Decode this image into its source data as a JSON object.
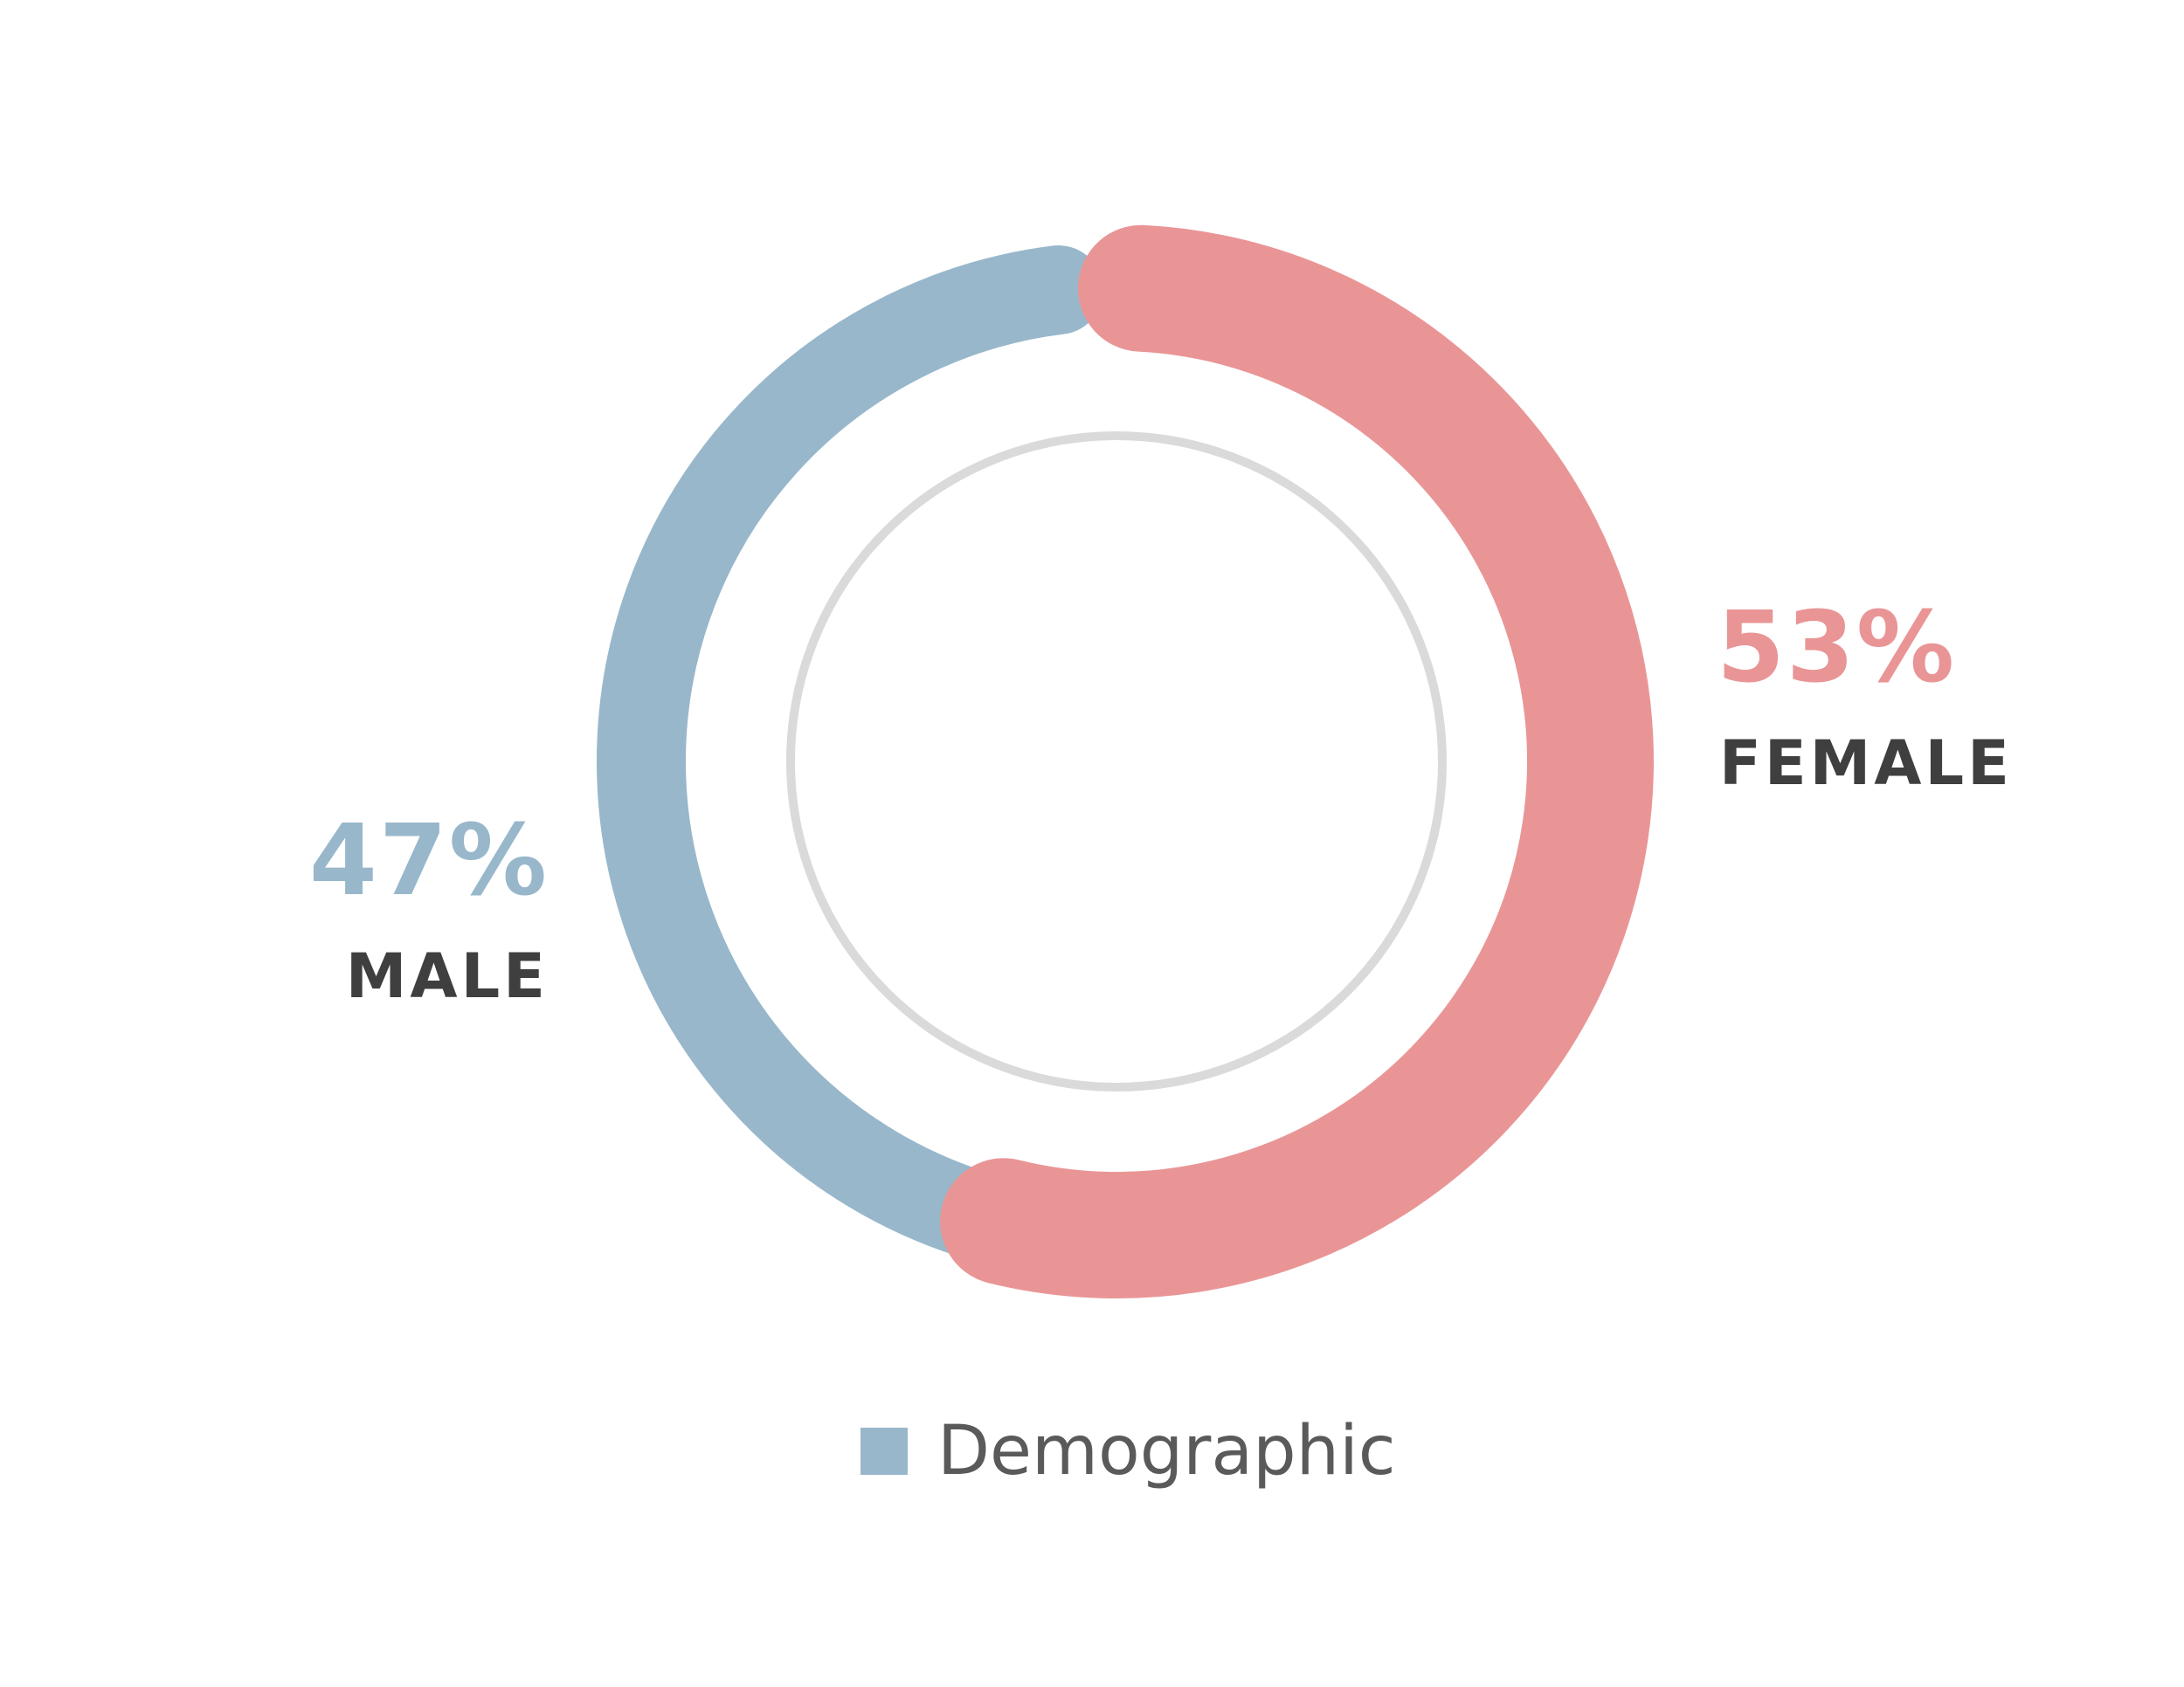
{
  "chart_data": {
    "type": "pie",
    "variant": "donut",
    "categories": [
      "MALE",
      "FEMALE"
    ],
    "values": [
      47,
      53
    ],
    "value_labels": [
      "47%",
      "53%"
    ],
    "legend": {
      "entries": [
        "Demographic"
      ],
      "placement": "bottom"
    },
    "colors": {
      "male": "#98b7cb",
      "female": "#e99596",
      "inner_ring": "#dadada",
      "label_text": "#3f3f3f",
      "legend_text": "#5a5a5a"
    }
  }
}
